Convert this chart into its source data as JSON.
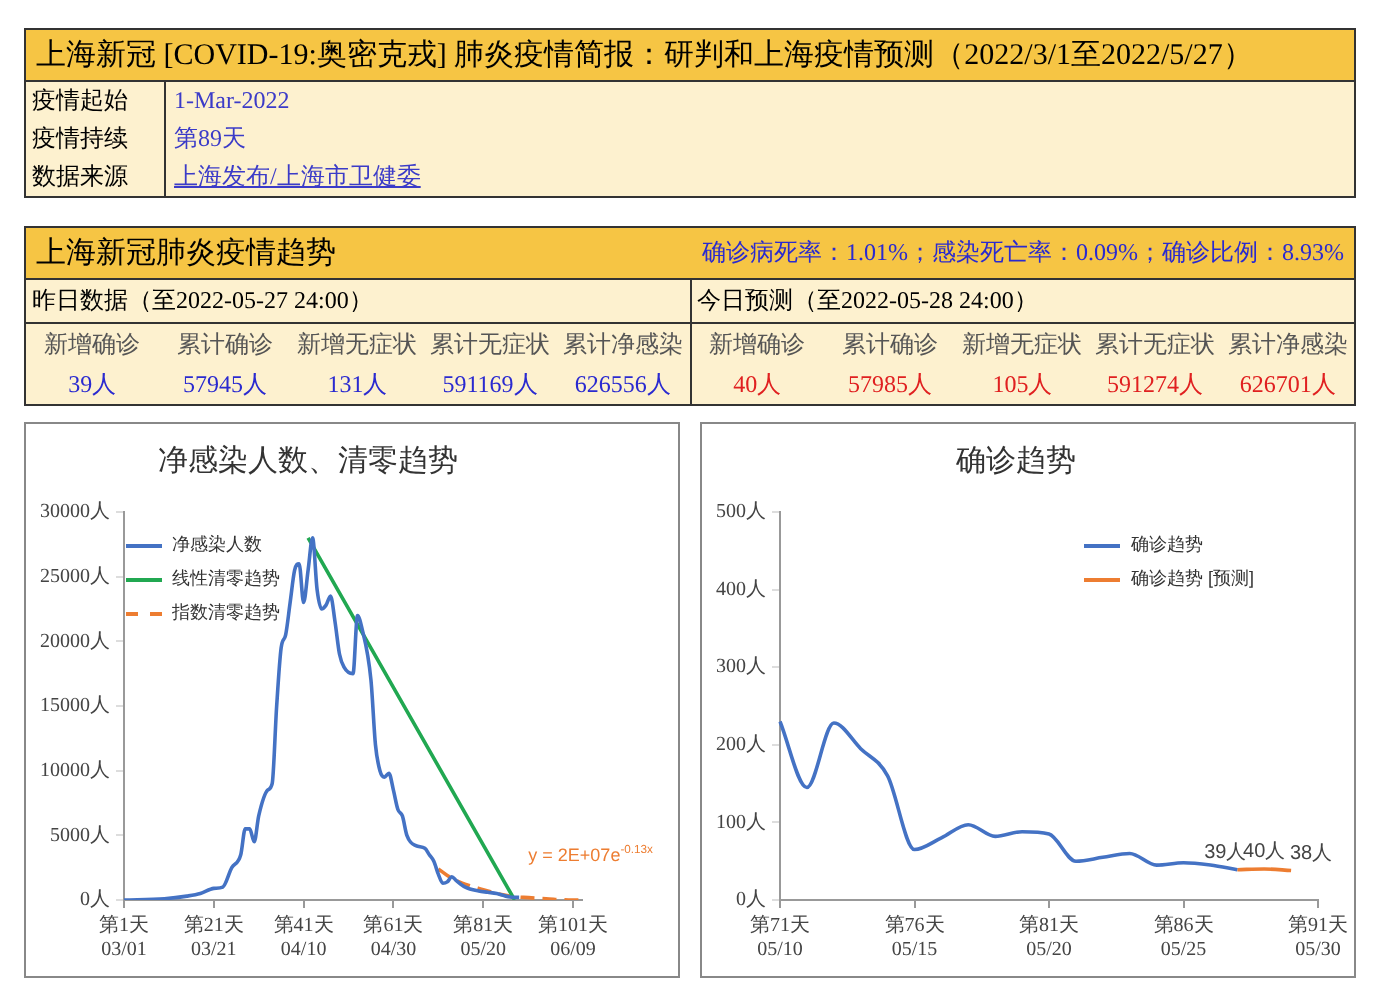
{
  "chart_data": [
    {
      "type": "other",
      "title": "上海新冠 [COVID-19:奥密克戎] 肺炎疫情简报：研判和上海疫情预测（2022/3/1至2022/5/27）",
      "categories": [
        "疫情起始",
        "疫情持续",
        "数据来源"
      ],
      "annotations": [
        "1-Mar-2022",
        "第89天",
        "上海发布/上海市卫健委"
      ]
    },
    {
      "type": "other",
      "title": "上海新冠肺炎疫情趋势",
      "subtitle": "确诊病死率：1.01%；感染死亡率：0.09%；确诊比例：8.93%",
      "categories": [
        "新增确诊",
        "累计确诊",
        "新增无症状",
        "累计无症状",
        "累计净感染"
      ],
      "series": [
        {
          "name": "昨日数据（至2022-05-27 24:00）",
          "values": [
            39,
            57945,
            131,
            591169,
            626556
          ],
          "value_labels": [
            "39人",
            "57945人",
            "131人",
            "591169人",
            "626556人"
          ]
        },
        {
          "name": "今日预测（至2022-05-28 24:00）",
          "values": [
            40,
            57985,
            105,
            591274,
            626701
          ],
          "value_labels": [
            "40人",
            "57985人",
            "105人",
            "591274人",
            "626701人"
          ]
        }
      ]
    },
    {
      "type": "line",
      "title": "净感染人数、清零趋势",
      "categories": [
        "第1天\n03/01",
        null,
        null,
        null,
        null,
        null,
        null,
        null,
        null,
        null,
        null,
        null,
        null,
        null,
        null,
        null,
        null,
        null,
        null,
        null,
        "第21天\n03/21",
        null,
        null,
        null,
        null,
        null,
        null,
        null,
        null,
        null,
        null,
        null,
        null,
        null,
        null,
        null,
        null,
        null,
        null,
        null,
        "第41天\n04/10",
        null,
        null,
        null,
        null,
        null,
        null,
        null,
        null,
        null,
        null,
        null,
        null,
        null,
        null,
        null,
        null,
        null,
        null,
        null,
        "第61天\n04/30",
        null,
        null,
        null,
        null,
        null,
        null,
        null,
        null,
        null,
        null,
        null,
        null,
        null,
        null,
        null,
        null,
        null,
        null,
        null,
        "第81天\n05/20",
        null,
        null,
        null,
        null,
        null,
        null,
        null,
        null,
        null,
        null,
        null,
        null,
        null,
        null,
        null,
        null,
        null,
        null,
        null,
        "第101天\n06/09",
        null,
        null
      ],
      "ylim": [
        0,
        30000
      ],
      "yticks": [
        {
          "value": 0,
          "label": "0人"
        },
        {
          "value": 5000,
          "label": "5000人"
        },
        {
          "value": 10000,
          "label": "10000人"
        },
        {
          "value": 15000,
          "label": "15000人"
        },
        {
          "value": 20000,
          "label": "20000人"
        },
        {
          "value": 25000,
          "label": "25000人"
        },
        {
          "value": 30000,
          "label": "30000人"
        }
      ],
      "grid": false,
      "legend": "top left",
      "marker": "none",
      "series": [
        {
          "name": "净感染人数",
          "color": "#4472c4",
          "values": [
            0,
            null,
            null,
            null,
            null,
            null,
            null,
            null,
            null,
            100,
            null,
            null,
            null,
            null,
            300,
            null,
            null,
            500,
            null,
            null,
            900,
            null,
            1000,
            null,
            2500,
            null,
            3500,
            5500,
            5500,
            4500,
            6500,
            null,
            8500,
            9000,
            15000,
            19500,
            20500,
            23000,
            25500,
            26000,
            23000,
            25500,
            28000,
            24000,
            22500,
            22800,
            23500,
            21500,
            19000,
            18000,
            null,
            17500,
            22000,
            21000,
            null,
            17000,
            12000,
            10000,
            9500,
            9800,
            8500,
            7000,
            6500,
            5000,
            null,
            4200,
            null,
            4000,
            3500,
            3000,
            2000,
            1300,
            1400,
            1800,
            1500,
            null,
            1000,
            null,
            null,
            700,
            null,
            600,
            null,
            500,
            null,
            300,
            null,
            200,
            200,
            null,
            null,
            null,
            null,
            null,
            null,
            null,
            null,
            null,
            null,
            null,
            null,
            null,
            null
          ]
        },
        {
          "name": "线性清零趋势",
          "color": "#21a851",
          "values": [
            null,
            null,
            null,
            null,
            null,
            null,
            null,
            null,
            null,
            null,
            null,
            null,
            null,
            null,
            null,
            null,
            null,
            null,
            null,
            null,
            null,
            null,
            null,
            null,
            null,
            null,
            null,
            null,
            null,
            null,
            null,
            null,
            null,
            null,
            null,
            null,
            null,
            null,
            null,
            null,
            null,
            28000,
            null,
            null,
            null,
            null,
            null,
            null,
            null,
            null,
            null,
            null,
            null,
            null,
            null,
            null,
            null,
            null,
            null,
            null,
            null,
            null,
            null,
            null,
            null,
            null,
            null,
            null,
            null,
            null,
            null,
            null,
            null,
            null,
            null,
            null,
            null,
            null,
            null,
            null,
            null,
            null,
            null,
            null,
            null,
            null,
            null,
            0,
            null,
            null,
            null,
            null,
            null,
            null,
            null,
            null,
            null,
            null,
            null,
            null,
            null,
            null,
            null
          ]
        },
        {
          "name": "指数清零趋势",
          "color": "#ed7d31",
          "line_style": "dashed",
          "values": [
            null,
            null,
            null,
            null,
            null,
            null,
            null,
            null,
            null,
            null,
            null,
            null,
            null,
            null,
            null,
            null,
            null,
            null,
            null,
            null,
            null,
            null,
            null,
            null,
            null,
            null,
            null,
            null,
            null,
            null,
            null,
            null,
            null,
            null,
            null,
            null,
            null,
            null,
            null,
            null,
            null,
            null,
            null,
            null,
            null,
            null,
            null,
            null,
            null,
            null,
            null,
            null,
            null,
            null,
            null,
            null,
            null,
            null,
            null,
            null,
            null,
            null,
            null,
            null,
            null,
            null,
            null,
            null,
            null,
            null,
            2400,
            null,
            1900,
            null,
            1500,
            null,
            null,
            1100,
            null,
            null,
            800,
            null,
            null,
            500,
            null,
            null,
            300,
            null,
            null,
            200,
            null,
            null,
            null,
            null,
            100,
            null,
            null,
            null,
            null,
            0,
            null,
            null,
            0
          ]
        }
      ],
      "annotations": [
        "y = 2E+07e$^{-0.13x}$"
      ]
    },
    {
      "type": "line",
      "title": "确诊趋势",
      "categories": [
        "第71天\n05/10",
        null,
        null,
        null,
        null,
        "第76天\n05/15",
        null,
        null,
        null,
        null,
        "第81天\n05/20",
        null,
        null,
        null,
        null,
        "第86天\n05/25",
        null,
        null,
        null,
        null,
        "第91天\n05/30"
      ],
      "ylim": [
        0,
        500
      ],
      "yticks": [
        {
          "value": 0,
          "label": "0人"
        },
        {
          "value": 100,
          "label": "100人"
        },
        {
          "value": 200,
          "label": "200人"
        },
        {
          "value": 300,
          "label": "300人"
        },
        {
          "value": 400,
          "label": "400人"
        },
        {
          "value": 500,
          "label": "500人"
        }
      ],
      "grid": false,
      "legend": "top right",
      "marker": "none",
      "series": [
        {
          "name": "确诊趋势",
          "color": "#4472c4",
          "values": [
            230,
            145,
            228,
            195,
            160,
            65,
            80,
            97,
            82,
            88,
            85,
            50,
            55,
            60,
            45,
            48,
            45,
            39,
            null,
            null,
            null
          ]
        },
        {
          "name": "确诊趋势 [预测]",
          "color": "#ed7d31",
          "values": [
            null,
            null,
            null,
            null,
            null,
            null,
            null,
            null,
            null,
            null,
            null,
            null,
            null,
            null,
            null,
            null,
            null,
            39,
            40,
            38,
            null
          ],
          "value_labels": [
            null,
            null,
            null,
            null,
            null,
            null,
            null,
            null,
            null,
            null,
            null,
            null,
            null,
            null,
            null,
            null,
            null,
            "39人",
            "40人",
            "38人",
            null
          ]
        }
      ]
    }
  ]
}
